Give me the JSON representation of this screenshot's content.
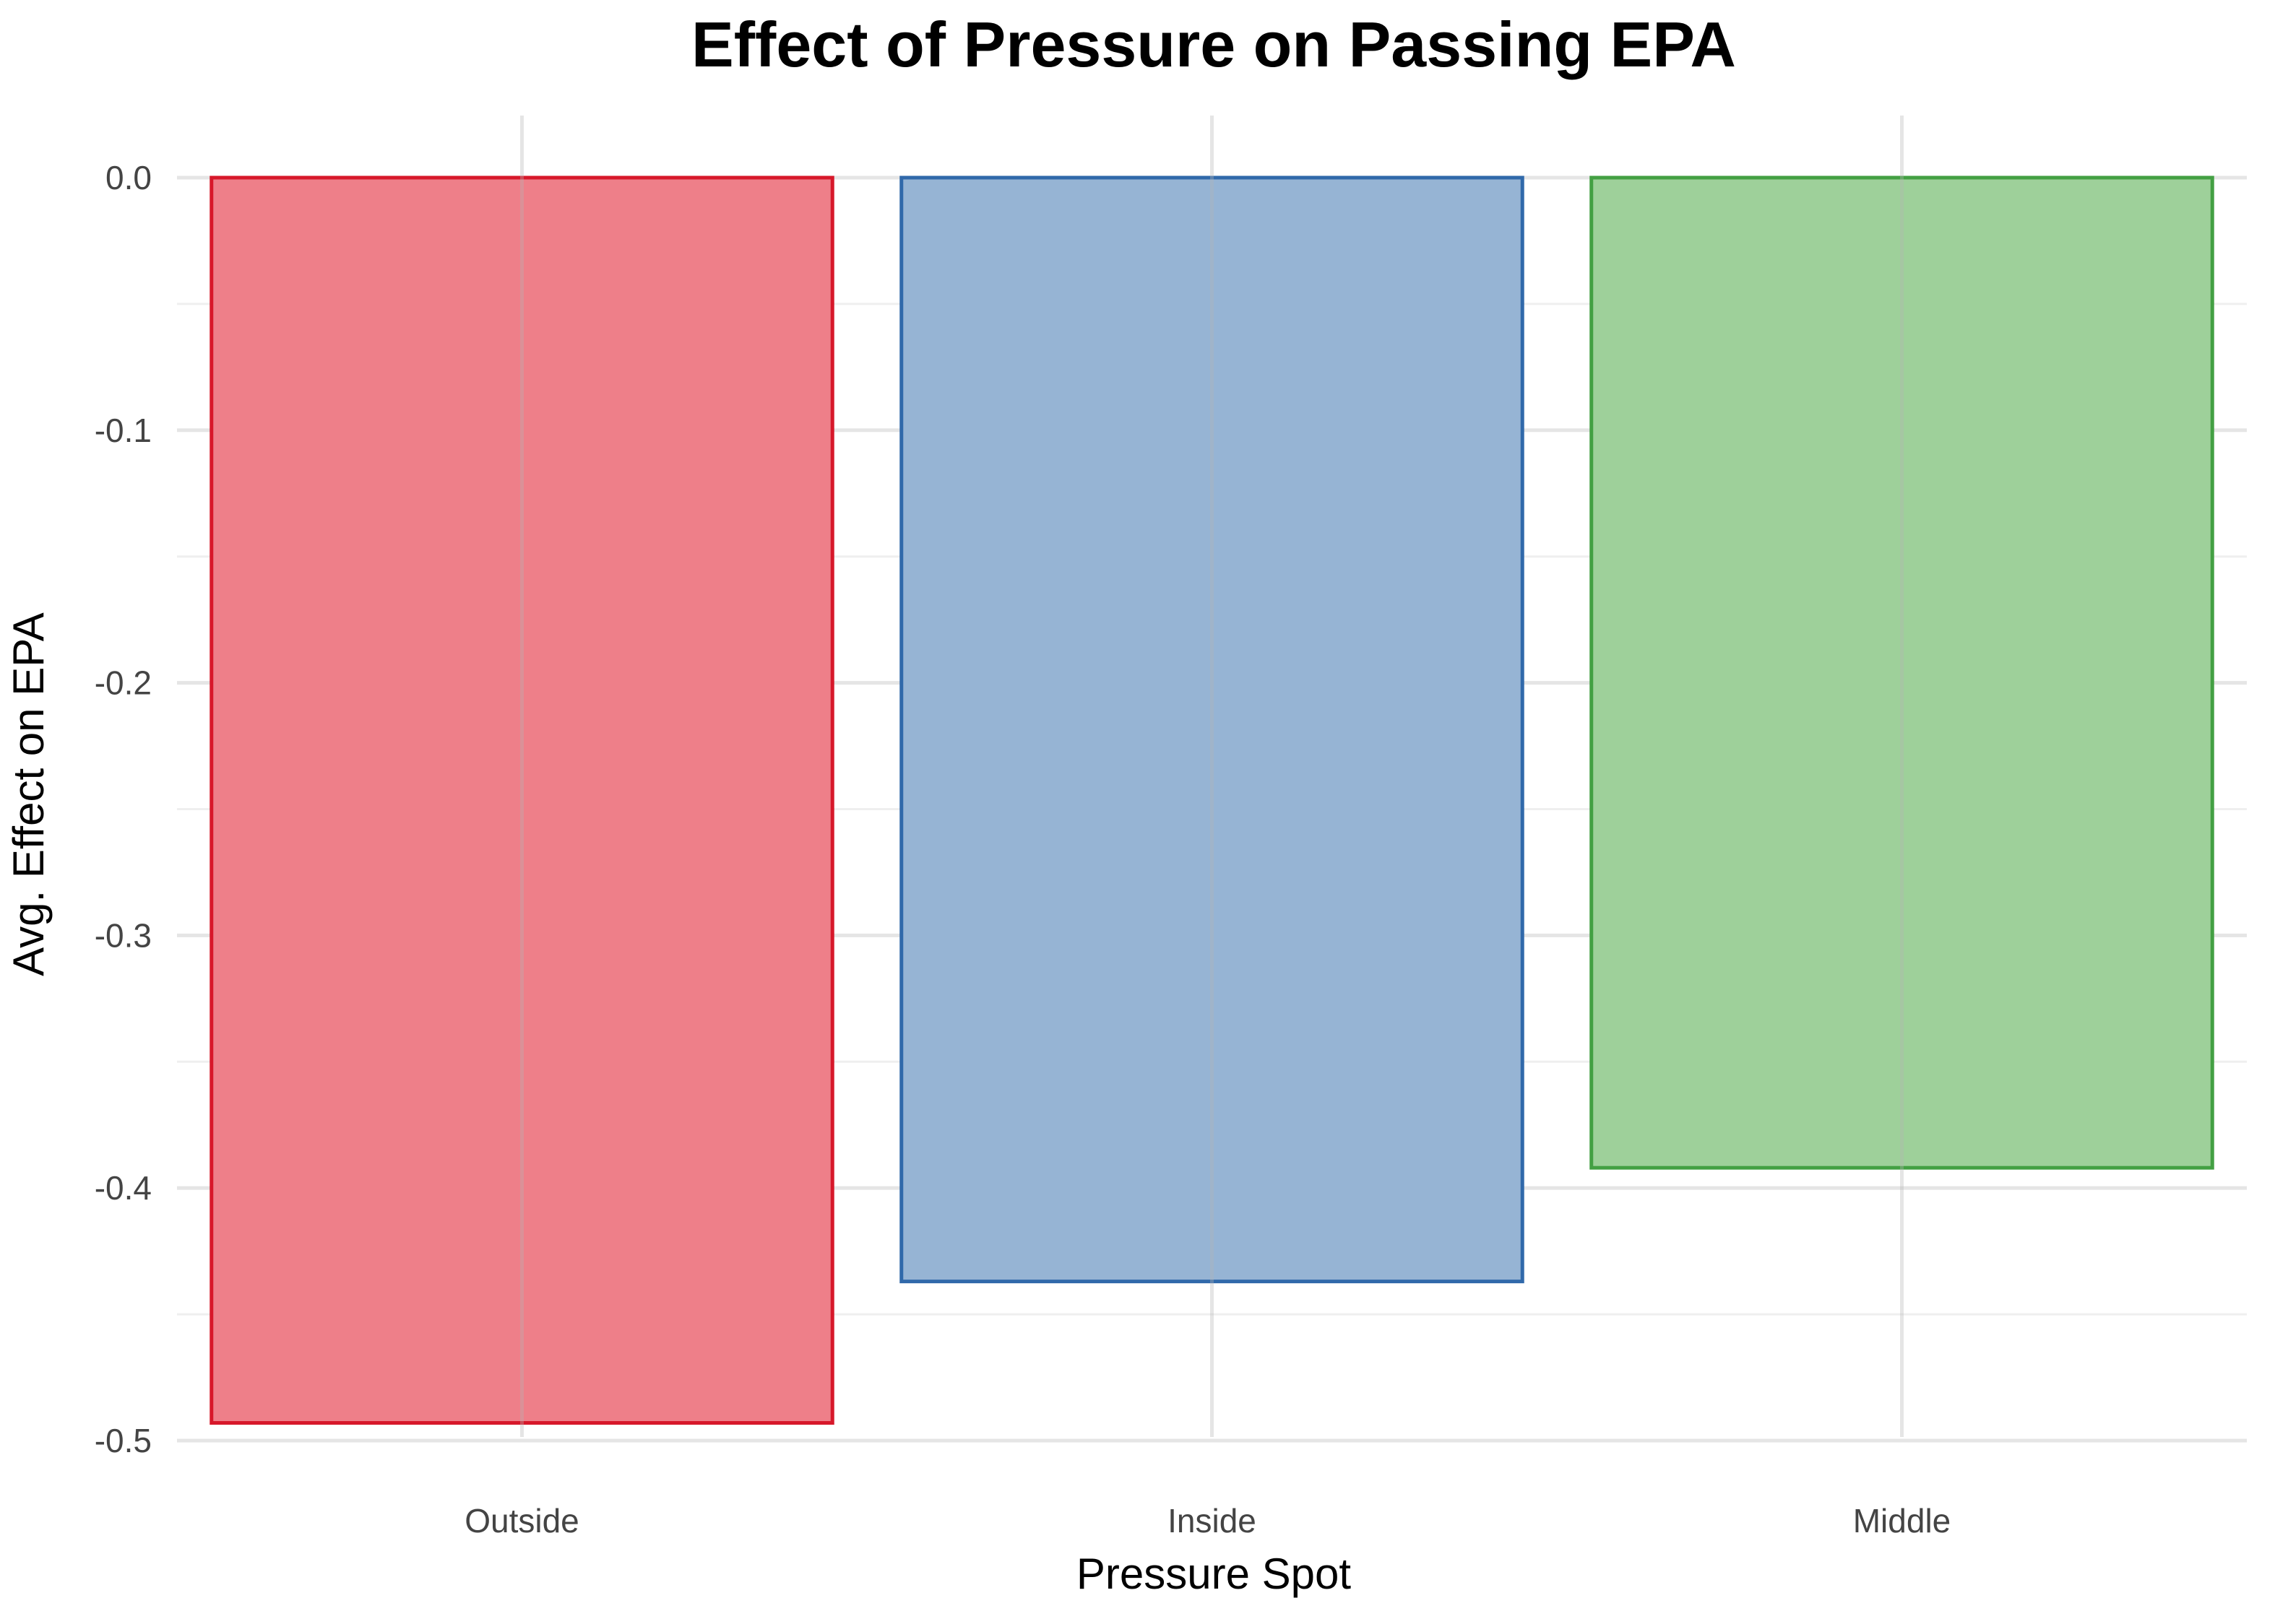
{
  "chart_data": {
    "type": "bar",
    "title": "Effect of Pressure on Passing EPA",
    "xlabel": "Pressure Spot",
    "ylabel": "Avg. Effect on EPA",
    "categories": [
      "Outside",
      "Inside",
      "Middle"
    ],
    "values": [
      -0.493,
      -0.437,
      -0.392
    ],
    "ylim": [
      -0.5,
      0.0
    ],
    "yticks": [
      "0.0",
      "-0.1",
      "-0.2",
      "-0.3",
      "-0.4",
      "-0.5"
    ],
    "ytick_values": [
      0.0,
      -0.1,
      -0.2,
      -0.3,
      -0.4,
      -0.5
    ],
    "grid": true,
    "legend": "none",
    "colors": {
      "fill": [
        "#ee7f89",
        "#96b4d4",
        "#9ed09a"
      ],
      "stroke": [
        "#d7182a",
        "#3069aa",
        "#43a043"
      ]
    }
  }
}
